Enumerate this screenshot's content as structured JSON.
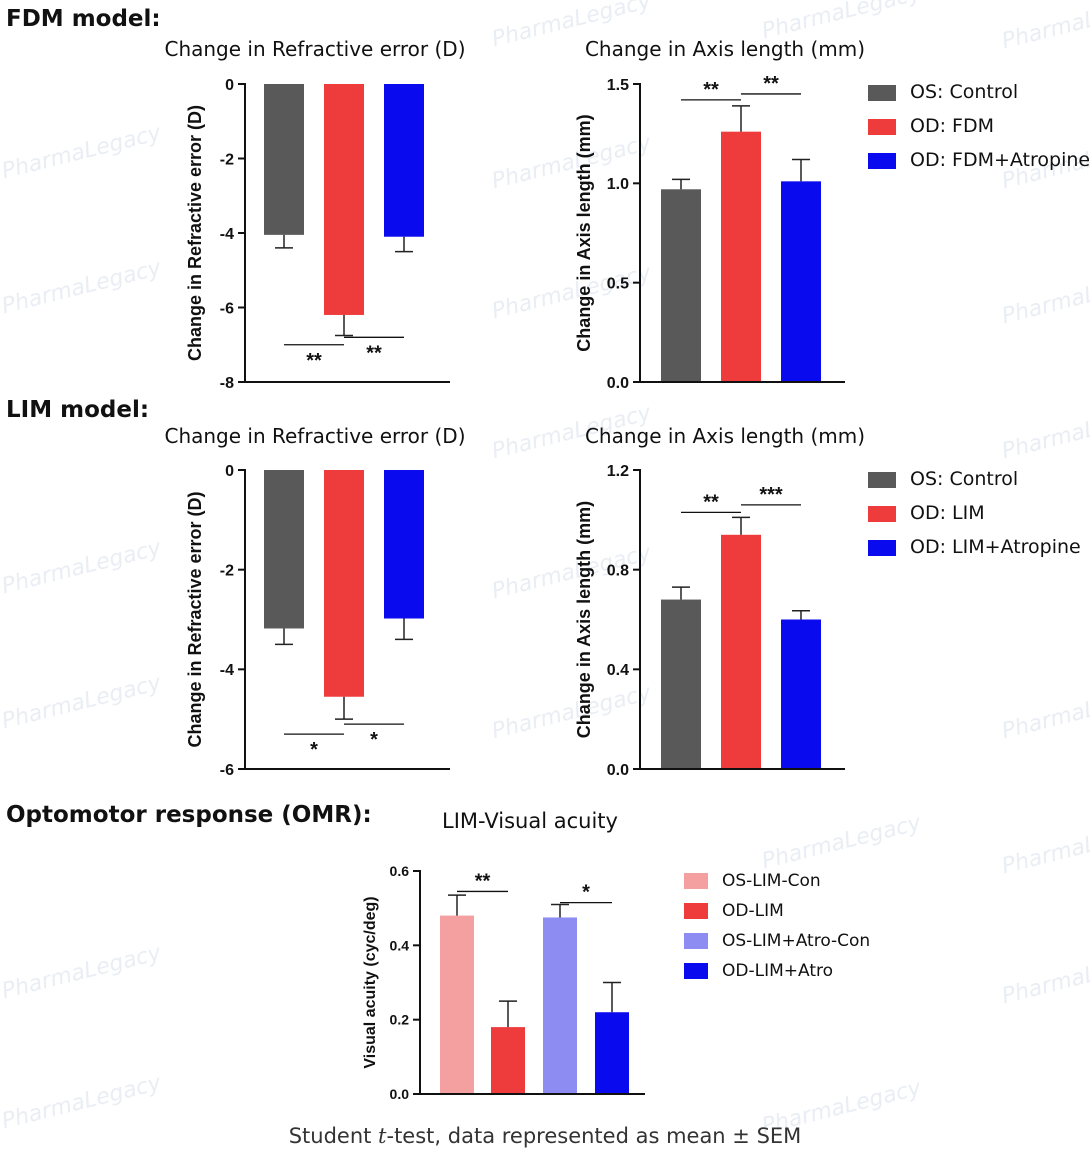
{
  "sections": {
    "fdm": "FDM model:",
    "lim": "LIM model:",
    "omr": "Optomotor response (OMR):"
  },
  "footer": {
    "prefix": "Student ",
    "t": "t",
    "suffix": "-test, data represented as mean ± SEM"
  },
  "watermark": "PharmaLegacy",
  "colors": {
    "control": "#595959",
    "red": "#ee3b3b",
    "blue": "#0a0aee",
    "light_red": "#f4a0a0",
    "light_blue": "#8c8cf2"
  },
  "chart_data": [
    {
      "id": "fdm_refractive",
      "type": "bar",
      "title": "Change in Refractive error  (D)",
      "xlabel": "",
      "ylabel": "Change in Refractive error  (D)",
      "ylim": [
        -8,
        0
      ],
      "yticks": [
        0,
        -2,
        -4,
        -6,
        -8
      ],
      "ytick_labels": [
        "0",
        "-2",
        "-4",
        "-6",
        "-8"
      ],
      "categories": [
        "OS: Control",
        "OD: FDM",
        "OD: FDM+Atropine"
      ],
      "values": [
        -4.05,
        -6.2,
        -4.1
      ],
      "errors": [
        0.35,
        0.55,
        0.4
      ],
      "colors": [
        "#595959",
        "#ee3b3b",
        "#0a0aee"
      ],
      "significance": [
        {
          "from": 0,
          "to": 1,
          "label": "**",
          "value": -7.0
        },
        {
          "from": 1,
          "to": 2,
          "label": "**",
          "value": -6.8
        }
      ]
    },
    {
      "id": "fdm_axis",
      "type": "bar",
      "title": "Change in Axis length (mm)",
      "xlabel": "",
      "ylabel": "Change in Axis length (mm)",
      "ylim": [
        0,
        1.5
      ],
      "yticks": [
        0,
        0.5,
        1.0,
        1.5
      ],
      "ytick_labels": [
        "0.0",
        "0.5",
        "1.0",
        "1.5"
      ],
      "categories": [
        "OS: Control",
        "OD: FDM",
        "OD: FDM+Atropine"
      ],
      "values": [
        0.97,
        1.26,
        1.01
      ],
      "errors": [
        0.05,
        0.13,
        0.11
      ],
      "colors": [
        "#595959",
        "#ee3b3b",
        "#0a0aee"
      ],
      "legend": [
        "OS: Control",
        "OD: FDM",
        "OD: FDM+Atropine"
      ],
      "significance": [
        {
          "from": 0,
          "to": 1,
          "label": "**",
          "value": 1.42
        },
        {
          "from": 1,
          "to": 2,
          "label": "**",
          "value": 1.45
        }
      ]
    },
    {
      "id": "lim_refractive",
      "type": "bar",
      "title": "Change in Refractive error  (D)",
      "xlabel": "",
      "ylabel": "Change in Refractive error  (D)",
      "ylim": [
        -6,
        0
      ],
      "yticks": [
        0,
        -2,
        -4,
        -6
      ],
      "ytick_labels": [
        "0",
        "-2",
        "-4",
        "-6"
      ],
      "categories": [
        "OS: Control",
        "OD: LIM",
        "OD: LIM+Atropine"
      ],
      "values": [
        -3.18,
        -4.55,
        -2.98
      ],
      "errors": [
        0.32,
        0.45,
        0.42
      ],
      "colors": [
        "#595959",
        "#ee3b3b",
        "#0a0aee"
      ],
      "significance": [
        {
          "from": 0,
          "to": 1,
          "label": "*",
          "value": -5.3
        },
        {
          "from": 1,
          "to": 2,
          "label": "*",
          "value": -5.1
        }
      ]
    },
    {
      "id": "lim_axis",
      "type": "bar",
      "title": "Change in Axis length (mm)",
      "xlabel": "",
      "ylabel": "Change in Axis length (mm)",
      "ylim": [
        0,
        1.2
      ],
      "yticks": [
        0,
        0.4,
        0.8,
        1.2
      ],
      "ytick_labels": [
        "0.0",
        "0.4",
        "0.8",
        "1.2"
      ],
      "categories": [
        "OS: Control",
        "OD: LIM",
        "OD: LIM+Atropine"
      ],
      "values": [
        0.68,
        0.94,
        0.6
      ],
      "errors": [
        0.05,
        0.07,
        0.035
      ],
      "colors": [
        "#595959",
        "#ee3b3b",
        "#0a0aee"
      ],
      "legend": [
        "OS: Control",
        "OD: LIM",
        "OD: LIM+Atropine"
      ],
      "significance": [
        {
          "from": 0,
          "to": 1,
          "label": "**",
          "value": 1.03
        },
        {
          "from": 1,
          "to": 2,
          "label": "***",
          "value": 1.06
        }
      ]
    },
    {
      "id": "omr_visual_acuity",
      "type": "bar",
      "title": "LIM-Visual acuity",
      "xlabel": "",
      "ylabel": "Visual acuity (cyc/deg)",
      "ylim": [
        0,
        0.6
      ],
      "yticks": [
        0,
        0.2,
        0.4,
        0.6
      ],
      "ytick_labels": [
        "0.0",
        "0.2",
        "0.4",
        "0.6"
      ],
      "categories": [
        "OS-LIM-Con",
        "OD-LIM",
        "OS-LIM+Atro-Con",
        "OD-LIM+Atro"
      ],
      "values": [
        0.48,
        0.18,
        0.475,
        0.22
      ],
      "errors": [
        0.055,
        0.07,
        0.035,
        0.08
      ],
      "colors": [
        "#f4a0a0",
        "#ee3b3b",
        "#8c8cf2",
        "#0a0aee"
      ],
      "legend": [
        "OS-LIM-Con",
        "OD-LIM",
        "OS-LIM+Atro-Con",
        "OD-LIM+Atro"
      ],
      "significance": [
        {
          "from": 0,
          "to": 1,
          "label": "**",
          "value": 0.545
        },
        {
          "from": 2,
          "to": 3,
          "label": "*",
          "value": 0.515
        }
      ]
    }
  ]
}
